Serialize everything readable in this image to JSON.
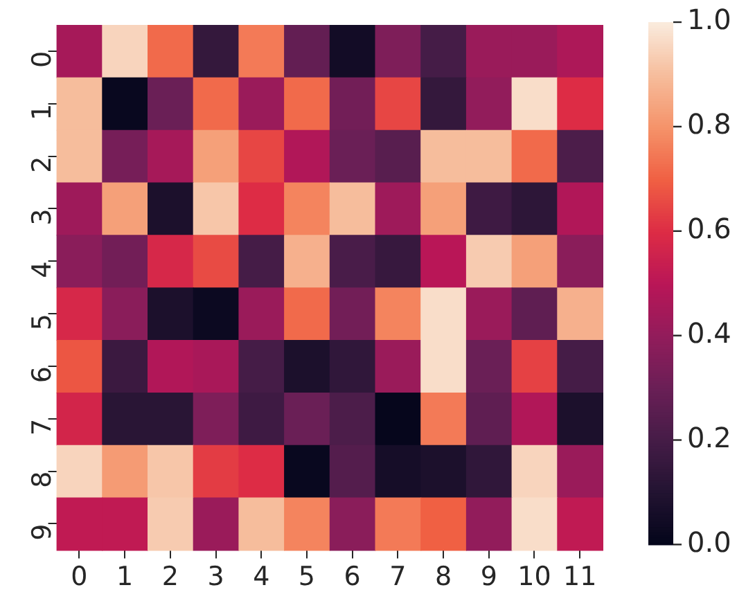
{
  "chart_data": {
    "type": "heatmap",
    "categories": [
      "0",
      "1",
      "2",
      "3",
      "4",
      "5",
      "6",
      "7",
      "8",
      "9",
      "10",
      "11"
    ],
    "y_categories": [
      "0",
      "1",
      "2",
      "3",
      "4",
      "5",
      "6",
      "7",
      "8",
      "9"
    ],
    "cells": [
      [
        0.45,
        0.95,
        0.72,
        0.15,
        0.75,
        0.28,
        0.05,
        0.35,
        0.2,
        0.42,
        0.42,
        0.47
      ],
      [
        0.9,
        0.02,
        0.3,
        0.72,
        0.42,
        0.72,
        0.32,
        0.65,
        0.15,
        0.4,
        0.97,
        0.6
      ],
      [
        0.9,
        0.33,
        0.45,
        0.83,
        0.65,
        0.48,
        0.3,
        0.25,
        0.9,
        0.9,
        0.72,
        0.22
      ],
      [
        0.43,
        0.83,
        0.08,
        0.92,
        0.6,
        0.77,
        0.9,
        0.43,
        0.83,
        0.18,
        0.13,
        0.48
      ],
      [
        0.38,
        0.32,
        0.58,
        0.66,
        0.2,
        0.87,
        0.21,
        0.16,
        0.5,
        0.93,
        0.83,
        0.38
      ],
      [
        0.58,
        0.38,
        0.08,
        0.03,
        0.42,
        0.72,
        0.32,
        0.77,
        0.97,
        0.42,
        0.27,
        0.87
      ],
      [
        0.68,
        0.17,
        0.48,
        0.46,
        0.2,
        0.08,
        0.14,
        0.42,
        0.97,
        0.3,
        0.64,
        0.2
      ],
      [
        0.57,
        0.12,
        0.12,
        0.35,
        0.18,
        0.3,
        0.22,
        0.01,
        0.75,
        0.27,
        0.48,
        0.08
      ],
      [
        0.95,
        0.82,
        0.92,
        0.63,
        0.6,
        0.02,
        0.24,
        0.06,
        0.08,
        0.14,
        0.95,
        0.42
      ],
      [
        0.52,
        0.52,
        0.93,
        0.42,
        0.9,
        0.77,
        0.38,
        0.75,
        0.7,
        0.4,
        0.97,
        0.52
      ]
    ],
    "clim": [
      0,
      1
    ],
    "cticks": [
      {
        "value": 0,
        "label": "0.0"
      },
      {
        "value": 0.2,
        "label": "0.2"
      },
      {
        "value": 0.4,
        "label": "0.4"
      },
      {
        "value": 0.6,
        "label": "0.6"
      },
      {
        "value": 0.8,
        "label": "0.8"
      },
      {
        "value": 1,
        "label": "1.0"
      }
    ]
  }
}
